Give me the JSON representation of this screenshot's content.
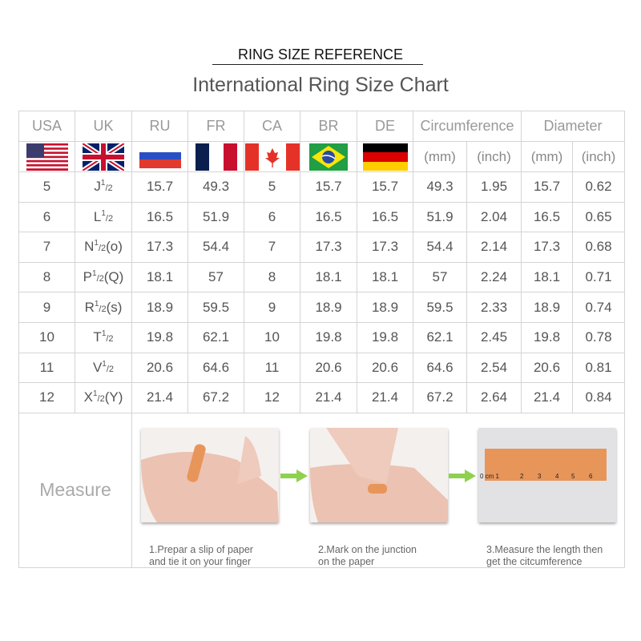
{
  "heading": "RING SIZE REFERENCE",
  "title": "International Ring Size Chart",
  "columns": {
    "usa": "USA",
    "uk": "UK",
    "ru": "RU",
    "fr": "FR",
    "ca": "CA",
    "br": "BR",
    "de": "DE",
    "circumference": "Circumference",
    "diameter": "Diameter"
  },
  "units": {
    "mm": "(mm)",
    "inch": "(inch)"
  },
  "flags": [
    "usa-flag",
    "uk-flag",
    "russia-flag",
    "france-flag",
    "canada-flag",
    "brazil-flag",
    "germany-flag"
  ],
  "rows": [
    {
      "usa": "5",
      "uk": {
        "base": "J",
        "sup": "1",
        "sub": "/2",
        "suffix": ""
      },
      "ru": "15.7",
      "fr": "49.3",
      "ca": "5",
      "br": "15.7",
      "de": "15.7",
      "circ_mm": "49.3",
      "circ_inch": "1.95",
      "dia_mm": "15.7",
      "dia_inch": "0.62"
    },
    {
      "usa": "6",
      "uk": {
        "base": "L",
        "sup": "1",
        "sub": "/2",
        "suffix": ""
      },
      "ru": "16.5",
      "fr": "51.9",
      "ca": "6",
      "br": "16.5",
      "de": "16.5",
      "circ_mm": "51.9",
      "circ_inch": "2.04",
      "dia_mm": "16.5",
      "dia_inch": "0.65"
    },
    {
      "usa": "7",
      "uk": {
        "base": "N",
        "sup": "1",
        "sub": "/2",
        "suffix": "(o)"
      },
      "ru": "17.3",
      "fr": "54.4",
      "ca": "7",
      "br": "17.3",
      "de": "17.3",
      "circ_mm": "54.4",
      "circ_inch": "2.14",
      "dia_mm": "17.3",
      "dia_inch": "0.68"
    },
    {
      "usa": "8",
      "uk": {
        "base": "P",
        "sup": "1",
        "sub": "/2",
        "suffix": "(Q)"
      },
      "ru": "18.1",
      "fr": "57",
      "ca": "8",
      "br": "18.1",
      "de": "18.1",
      "circ_mm": "57",
      "circ_inch": "2.24",
      "dia_mm": "18.1",
      "dia_inch": "0.71"
    },
    {
      "usa": "9",
      "uk": {
        "base": "R",
        "sup": "1",
        "sub": "/2",
        "suffix": "(s)"
      },
      "ru": "18.9",
      "fr": "59.5",
      "ca": "9",
      "br": "18.9",
      "de": "18.9",
      "circ_mm": "59.5",
      "circ_inch": "2.33",
      "dia_mm": "18.9",
      "dia_inch": "0.74"
    },
    {
      "usa": "10",
      "uk": {
        "base": "T",
        "sup": "1",
        "sub": "/2",
        "suffix": ""
      },
      "ru": "19.8",
      "fr": "62.1",
      "ca": "10",
      "br": "19.8",
      "de": "19.8",
      "circ_mm": "62.1",
      "circ_inch": "2.45",
      "dia_mm": "19.8",
      "dia_inch": "0.78"
    },
    {
      "usa": "11",
      "uk": {
        "base": "V",
        "sup": "1",
        "sub": "/2",
        "suffix": ""
      },
      "ru": "20.6",
      "fr": "64.6",
      "ca": "11",
      "br": "20.6",
      "de": "20.6",
      "circ_mm": "64.6",
      "circ_inch": "2.54",
      "dia_mm": "20.6",
      "dia_inch": "0.81"
    },
    {
      "usa": "12",
      "uk": {
        "base": "X",
        "sup": "1",
        "sub": "/2",
        "suffix": "(Y)"
      },
      "ru": "21.4",
      "fr": "67.2",
      "ca": "12",
      "br": "21.4",
      "de": "21.4",
      "circ_mm": "67.2",
      "circ_inch": "2.64",
      "dia_mm": "21.4",
      "dia_inch": "0.84"
    }
  ],
  "measure": {
    "label": "Measure",
    "steps": [
      {
        "caption_line1": "1.Prepar a slip of paper",
        "caption_line2": "and tie it on your finger"
      },
      {
        "caption_line1": "2.Mark on the junction",
        "caption_line2": "on the paper"
      },
      {
        "caption_line1": "3.Measure the length then",
        "caption_line2": "get the citcumference"
      }
    ],
    "ruler_labels": [
      "0 cm 1",
      "2",
      "3",
      "4",
      "5",
      "6"
    ]
  },
  "colors": {
    "arrow": "#8fd14f",
    "grid": "#d4d4d4",
    "paper": "#e8955a"
  }
}
